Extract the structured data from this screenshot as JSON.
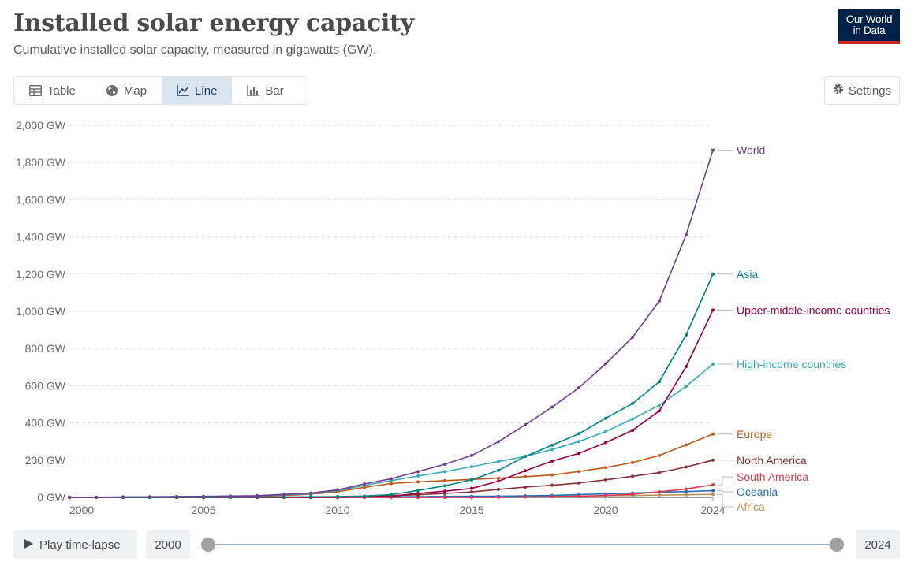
{
  "header": {
    "title": "Installed solar energy capacity",
    "subtitle": "Cumulative installed solar capacity, measured in gigawatts (GW).",
    "logo_line1": "Our World",
    "logo_line2": "in Data"
  },
  "tabs": [
    {
      "label": "Table",
      "icon": "table-icon"
    },
    {
      "label": "Map",
      "icon": "globe-icon"
    },
    {
      "label": "Line",
      "icon": "line-chart-icon",
      "active": true
    },
    {
      "label": "Bar",
      "icon": "bar-chart-icon"
    }
  ],
  "settings_label": "Settings",
  "timeline": {
    "play_label": "Play time-lapse",
    "start_year": "2000",
    "end_year": "2024"
  },
  "chart_data": {
    "type": "line",
    "title": "Installed solar energy capacity",
    "subtitle": "Cumulative installed solar capacity, measured in gigawatts (GW).",
    "xlabel": "",
    "ylabel": "",
    "xlim": [
      2000,
      2024
    ],
    "ylim": [
      0,
      2000
    ],
    "x_ticks": [
      "2000",
      "2005",
      "2010",
      "2015",
      "2020",
      "2024"
    ],
    "y_ticks": [
      "0 GW",
      "200 GW",
      "400 GW",
      "600 GW",
      "800 GW",
      "1,000 GW",
      "1,200 GW",
      "1,400 GW",
      "1,600 GW",
      "1,800 GW",
      "2,000 GW"
    ],
    "grid": "horizontal dashed",
    "legend": "inline labels at right end of lines",
    "x": [
      2000,
      2001,
      2002,
      2003,
      2004,
      2005,
      2006,
      2007,
      2008,
      2009,
      2010,
      2011,
      2012,
      2013,
      2014,
      2015,
      2016,
      2017,
      2018,
      2019,
      2020,
      2021,
      2022,
      2023,
      2024
    ],
    "series": [
      {
        "name": "World",
        "color": "#6d3e91",
        "values": [
          1,
          1,
          2,
          3,
          4,
          5,
          7,
          9,
          16,
          23,
          40,
          72,
          100,
          138,
          178,
          225,
          299,
          390,
          485,
          589,
          718,
          860,
          1056,
          1412,
          1866
        ]
      },
      {
        "name": "Asia",
        "color": "#00847e",
        "values": [
          0,
          0,
          0,
          0,
          1,
          1,
          1,
          2,
          2,
          3,
          4,
          7,
          15,
          37,
          62,
          94,
          145,
          220,
          280,
          342,
          425,
          504,
          622,
          873,
          1200
        ]
      },
      {
        "name": "Upper-middle-income countries",
        "color": "#970046",
        "values": [
          0,
          0,
          0,
          0,
          0,
          0,
          0,
          0,
          0,
          0,
          1,
          3,
          6,
          21,
          33,
          48,
          87,
          143,
          195,
          236,
          294,
          360,
          465,
          703,
          1007
        ]
      },
      {
        "name": "High-income countries",
        "color": "#38aaba",
        "values": [
          1,
          1,
          2,
          3,
          4,
          5,
          6,
          8,
          14,
          20,
          36,
          64,
          90,
          115,
          138,
          165,
          193,
          220,
          257,
          300,
          354,
          421,
          495,
          597,
          716
        ]
      },
      {
        "name": "Europe",
        "color": "#c05917",
        "values": [
          0,
          0,
          0,
          1,
          1,
          2,
          3,
          5,
          10,
          17,
          30,
          54,
          74,
          83,
          90,
          96,
          103,
          111,
          120,
          139,
          160,
          187,
          225,
          282,
          340
        ]
      },
      {
        "name": "North America",
        "color": "#883039",
        "values": [
          0,
          0,
          0,
          0,
          0,
          0,
          0,
          1,
          1,
          1,
          3,
          5,
          9,
          14,
          21,
          29,
          43,
          55,
          65,
          77,
          94,
          113,
          133,
          163,
          200
        ]
      },
      {
        "name": "South America",
        "color": "#d73c50",
        "values": [
          0,
          0,
          0,
          0,
          0,
          0,
          0,
          0,
          0,
          0,
          0,
          0,
          0,
          0,
          0,
          0,
          1,
          2,
          4,
          6,
          10,
          17,
          30,
          45,
          68
        ]
      },
      {
        "name": "Oceania",
        "color": "#286bbb",
        "values": [
          0,
          0,
          0,
          0,
          0,
          0,
          0,
          0,
          0,
          0,
          1,
          2,
          3,
          4,
          5,
          6,
          6,
          8,
          10,
          15,
          19,
          23,
          27,
          31,
          36
        ]
      },
      {
        "name": "Africa",
        "color": "#bc8e5a",
        "values": [
          0,
          0,
          0,
          0,
          0,
          0,
          0,
          0,
          0,
          0,
          0,
          0,
          0,
          1,
          1,
          2,
          3,
          4,
          6,
          7,
          9,
          10,
          12,
          14,
          16
        ]
      }
    ]
  }
}
